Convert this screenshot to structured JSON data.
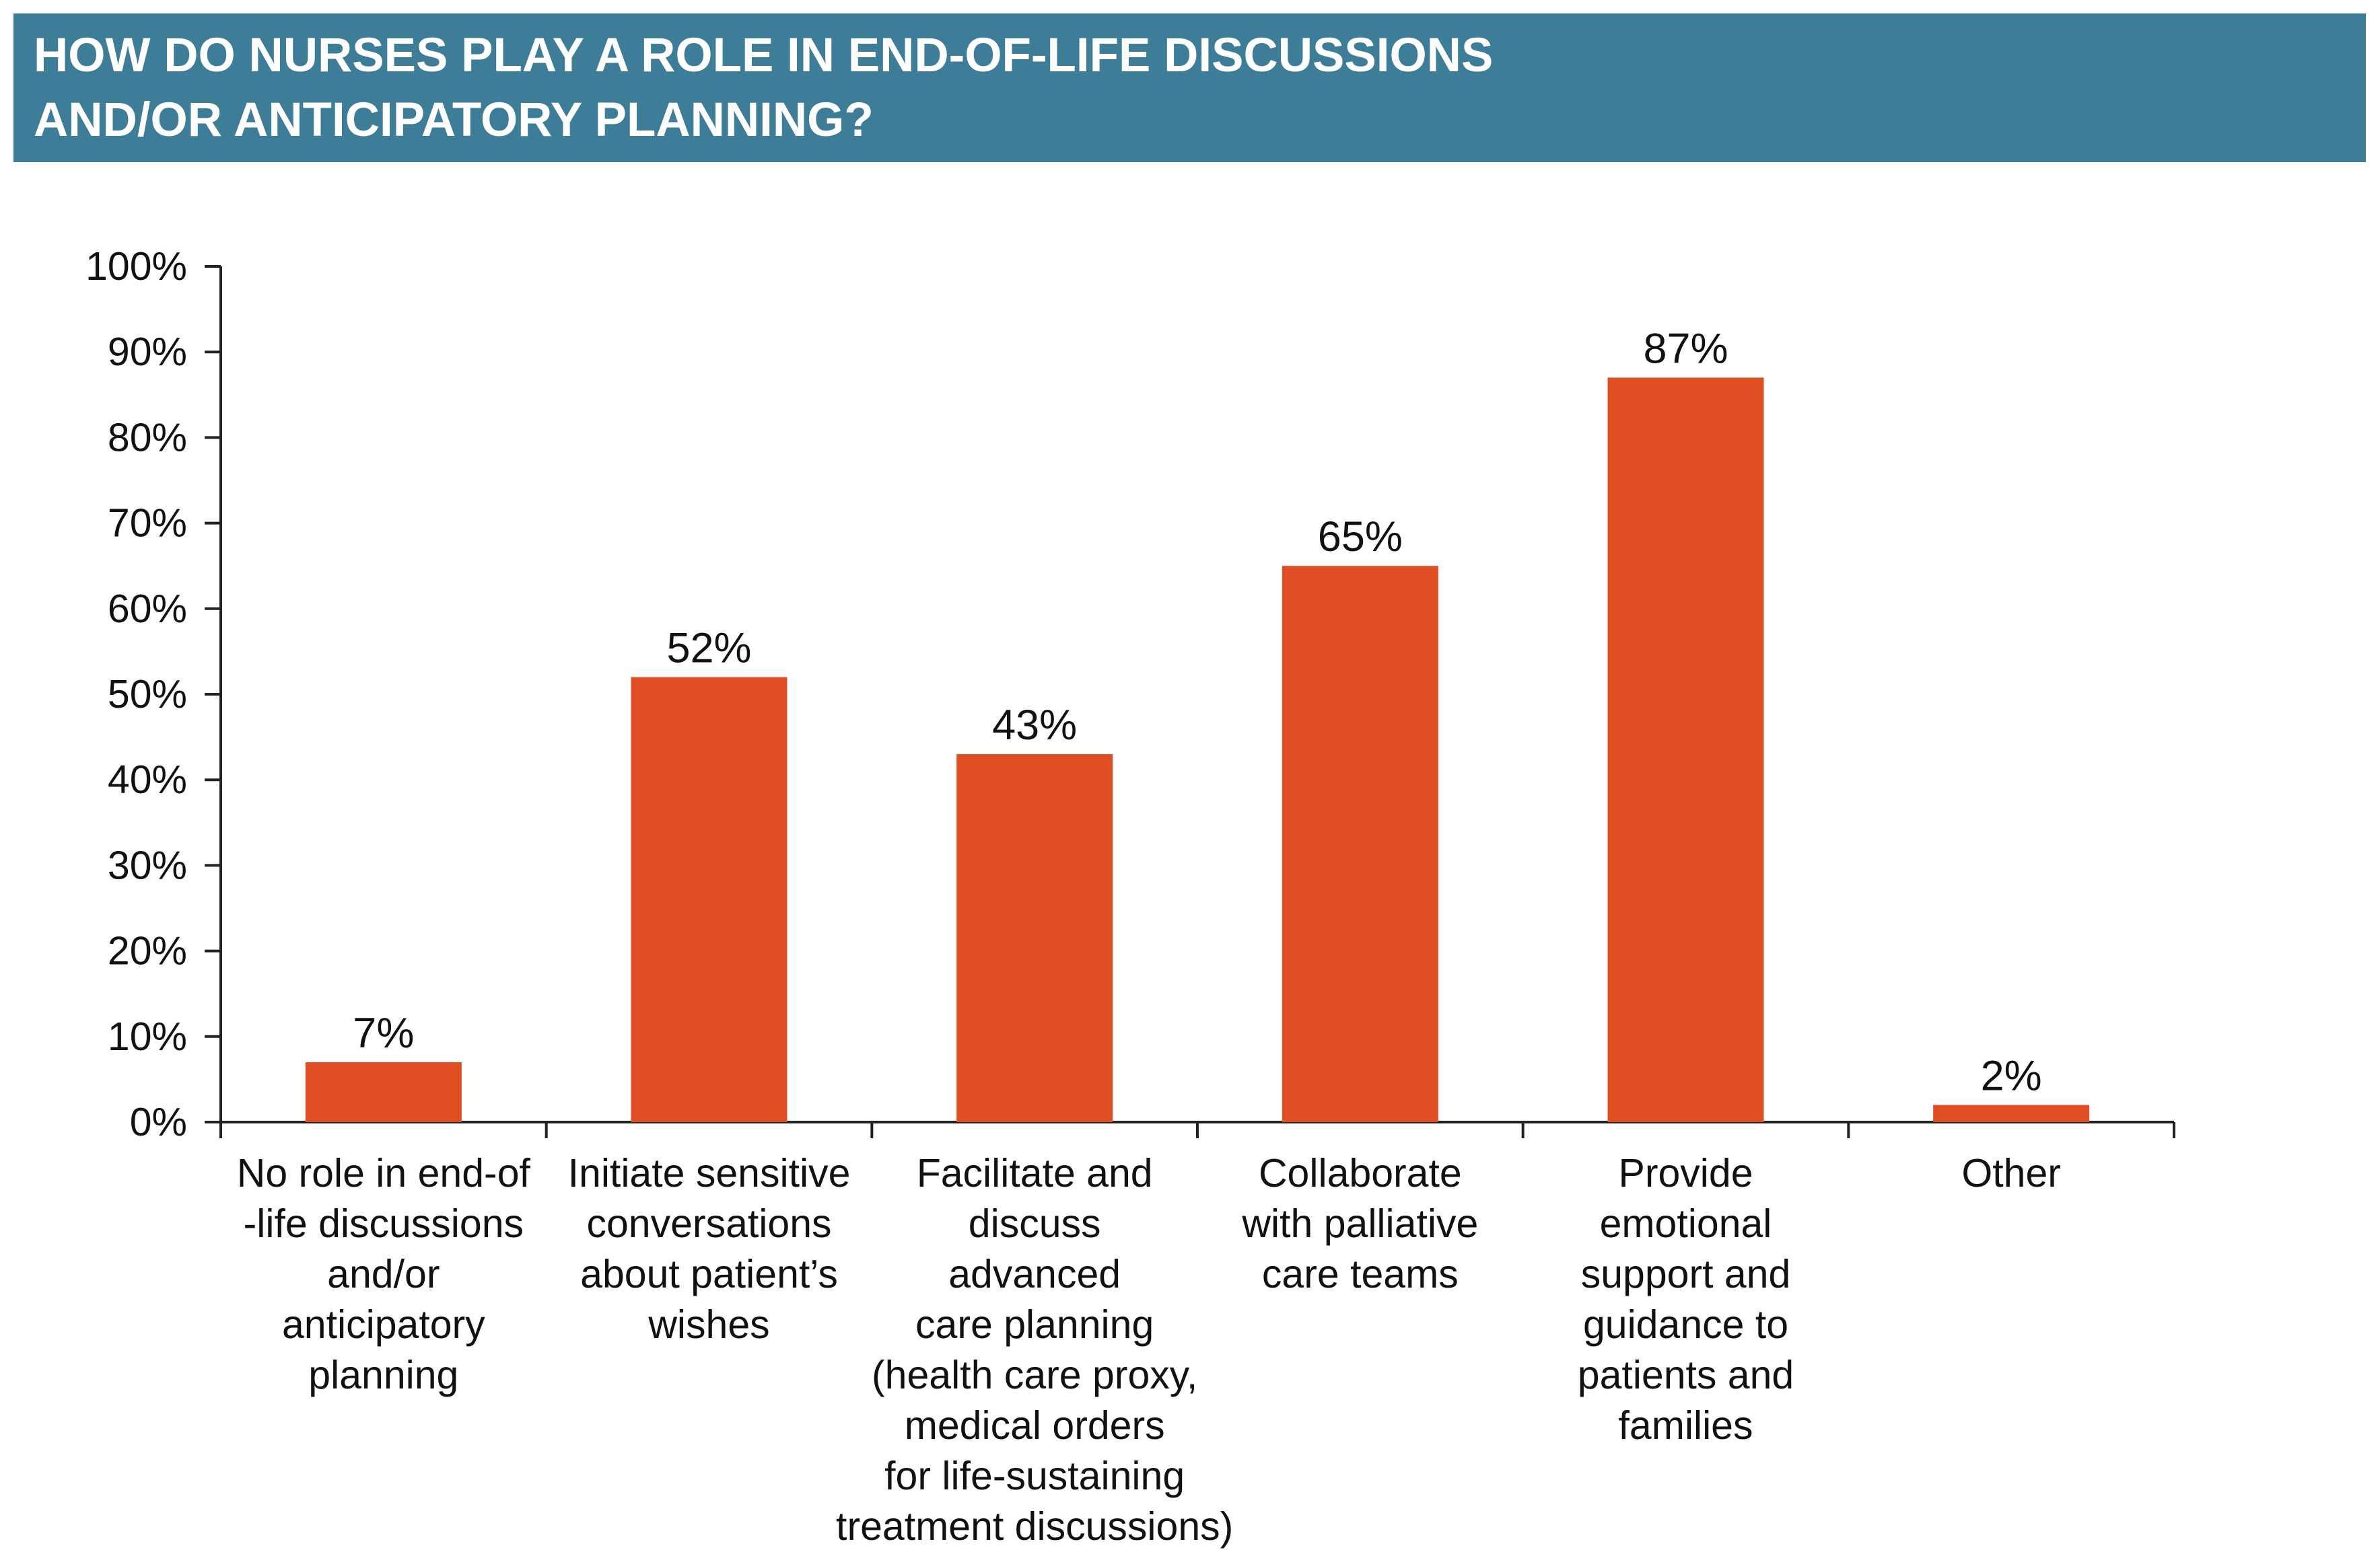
{
  "header": {
    "title_line1": "HOW DO NURSES PLAY A ROLE IN END-OF-LIFE DISCUSSIONS",
    "title_line2": "AND/OR ANTICIPATORY PLANNING?",
    "background_color": "#3e7d97"
  },
  "chart_data": {
    "type": "bar",
    "title": "HOW DO NURSES PLAY A ROLE IN END-OF-LIFE DISCUSSIONS AND/OR ANTICIPATORY PLANNING?",
    "categories": [
      "No role in end-of-life discussions and/or anticipatory planning",
      "Initiate sensitive conversations about patient’s wishes",
      "Facilitate and discuss advanced care planning (health care proxy, medical orders for life-sustaining treatment discussions)",
      "Collaborate with palliative care teams",
      "Provide emotional support and guidance to patients and families",
      "Other"
    ],
    "category_label_lines": [
      [
        "No role in end-of",
        "-life discussions",
        "and/or",
        "anticipatory",
        "planning"
      ],
      [
        "Initiate sensitive",
        "conversations",
        "about patient’s",
        "wishes"
      ],
      [
        "Facilitate and",
        "discuss",
        "advanced",
        "care planning",
        "(health care proxy,",
        "medical orders",
        "for life-sustaining",
        "treatment discussions)"
      ],
      [
        "Collaborate",
        "with palliative",
        "care teams"
      ],
      [
        "Provide",
        "emotional",
        "support and",
        "guidance to",
        "patients and",
        "families"
      ],
      [
        "Other"
      ]
    ],
    "values": [
      7,
      52,
      43,
      65,
      87,
      2
    ],
    "value_labels": [
      "7%",
      "52%",
      "43%",
      "65%",
      "87%",
      "2%"
    ],
    "y_ticks": [
      "0%",
      "10%",
      "20%",
      "30%",
      "40%",
      "50%",
      "60%",
      "70%",
      "80%",
      "90%",
      "100%"
    ],
    "ylim": [
      0,
      100
    ],
    "xlabel": "",
    "ylabel": "",
    "grid": false,
    "bar_color": "#e04e24",
    "axis_color": "#222222"
  }
}
